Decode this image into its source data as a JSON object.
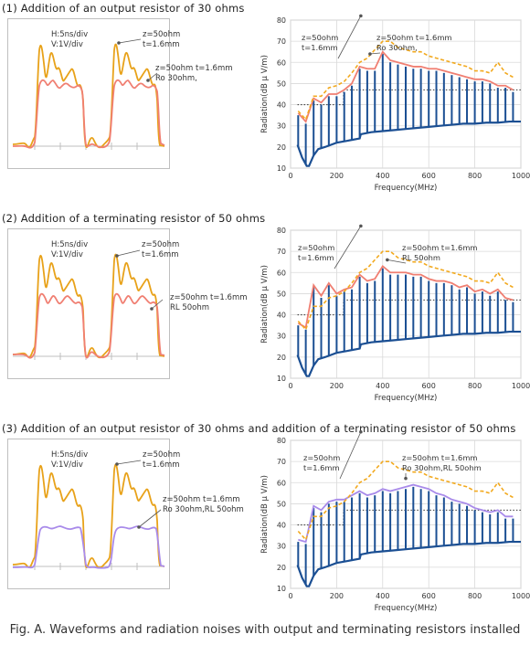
{
  "figure": {
    "caption": "Fig. A. Waveforms and radiation noises with output and terminating resistors installed"
  },
  "colors": {
    "axis_gray": "#bfbfbf",
    "original_waveform": "#e8a21a",
    "ro_waveform": "#f07f72",
    "rl_waveform": "#f07f72",
    "both_waveform": "#a98bea",
    "spectrum": "#1b4f93",
    "orig_envelope": "#f2a91e",
    "limit_line": "#333333"
  },
  "sections": [
    {
      "title": "(1) Addition of an output resistor of 30 ohms",
      "waveform": {
        "scale_h": "H:5ns/div",
        "scale_v": "V:1V/div",
        "label_orig_line1": "z=50ohm",
        "label_orig_line2": "t=1.6mm",
        "label_mod_line1": "z=50ohm  t=1.6mm",
        "label_mod_line2": "Ro 30ohm,"
      },
      "chart_data": {
        "type": "line",
        "ylabel": "Radiation(dB μ V/m)",
        "xlabel": "Frequency(MHz)",
        "xlim": [
          0,
          1000
        ],
        "ylim": [
          10,
          80
        ],
        "x_ticks": [
          0,
          200,
          400,
          600,
          800,
          1000
        ],
        "y_ticks": [
          10,
          20,
          30,
          40,
          50,
          60,
          70,
          80
        ],
        "grid": true,
        "label_orig_line1": "z=50ohm",
        "label_orig_line2": "t=1.6mm",
        "label_mod_line1": "z=50ohm  t=1.6mm",
        "label_mod_line2": "Ro 30ohm,",
        "series": [
          {
            "kind": "orig_envelope",
            "x": [
              33,
              66,
              100,
              133,
              166,
              200,
              233,
              266,
              300,
              333,
              366,
              400,
              433,
              466,
              500,
              533,
              566,
              600,
              633,
              666,
              700,
              733,
              766,
              800,
              833,
              866,
              900,
              933,
              966
            ],
            "values": [
              37,
              33,
              44,
              44,
              48,
              49,
              51,
              55,
              60,
              62,
              66,
              70,
              70,
              67,
              66,
              65,
              65,
              63,
              62,
              61,
              60,
              59,
              58,
              56,
              56,
              55,
              60,
              55,
              53
            ]
          },
          {
            "kind": "modified_envelope",
            "x": [
              33,
              66,
              100,
              133,
              166,
              200,
              233,
              266,
              300,
              333,
              366,
              400,
              433,
              466,
              500,
              533,
              566,
              600,
              633,
              666,
              700,
              733,
              766,
              800,
              833,
              866,
              900,
              933,
              966
            ],
            "values": [
              36,
              32,
              43,
              41,
              45,
              45,
              47,
              50,
              58,
              57,
              57,
              65,
              61,
              60,
              59,
              58,
              58,
              57,
              57,
              56,
              55,
              54,
              53,
              52,
              52,
              51,
              49,
              49,
              47
            ]
          },
          {
            "kind": "spikes",
            "x": [
              33,
              66,
              100,
              133,
              166,
              200,
              233,
              266,
              300,
              333,
              366,
              400,
              433,
              466,
              500,
              533,
              566,
              600,
              633,
              666,
              700,
              733,
              766,
              800,
              833,
              866,
              900,
              933,
              966
            ],
            "values": [
              35,
              31,
              42,
              40,
              44,
              44,
              46,
              49,
              57,
              56,
              56,
              64,
              60,
              59,
              58,
              57,
              57,
              56,
              56,
              55,
              54,
              53,
              52,
              51,
              51,
              50,
              48,
              48,
              46
            ]
          },
          {
            "kind": "noise_floor",
            "x": [
              30,
              50,
              70,
              80,
              100,
              120,
              150,
              200,
              250,
              300,
              305,
              350,
              400,
              450,
              500,
              550,
              600,
              650,
              700,
              750,
              800,
              850,
              900,
              950,
              1000
            ],
            "values": [
              21,
              15,
              11,
              11,
              16,
              19,
              20,
              22,
              23,
              24,
              26,
              27,
              27.5,
              28,
              28.5,
              29,
              29.5,
              30,
              30.5,
              31,
              31,
              31.5,
              31.5,
              32,
              32
            ]
          },
          {
            "kind": "limit_segments",
            "x": [
              30,
              230,
              230,
              1000
            ],
            "values": [
              40,
              40,
              47,
              47
            ]
          }
        ]
      }
    },
    {
      "title": "(2) Addition of a terminating resistor of 50 ohms",
      "waveform": {
        "scale_h": "H:5ns/div",
        "scale_v": "V:1V/div",
        "label_orig_line1": "z=50ohm",
        "label_orig_line2": "t=1.6mm",
        "label_mod_line1": "z=50ohm  t=1.6mm",
        "label_mod_line2": "RL 50ohm"
      },
      "chart_data": {
        "type": "line",
        "ylabel": "Radiation(dB μ V/m)",
        "xlabel": "Frequency(MHz)",
        "xlim": [
          0,
          1000
        ],
        "ylim": [
          10,
          80
        ],
        "x_ticks": [
          0,
          200,
          400,
          600,
          800,
          1000
        ],
        "y_ticks": [
          10,
          20,
          30,
          40,
          50,
          60,
          70,
          80
        ],
        "grid": true,
        "label_orig_line1": "z=50ohm",
        "label_orig_line2": "t=1.6mm",
        "label_mod_line1": "z=50ohm  t=1.6mm",
        "label_mod_line2": "RL 50ohm",
        "series": [
          {
            "kind": "orig_envelope",
            "x": [
              33,
              66,
              100,
              133,
              166,
              200,
              233,
              266,
              300,
              333,
              366,
              400,
              433,
              466,
              500,
              533,
              566,
              600,
              633,
              666,
              700,
              733,
              766,
              800,
              833,
              866,
              900,
              933,
              966
            ],
            "values": [
              37,
              33,
              44,
              44,
              48,
              49,
              51,
              55,
              60,
              62,
              66,
              70,
              70,
              67,
              66,
              65,
              65,
              63,
              62,
              61,
              60,
              59,
              58,
              56,
              56,
              55,
              60,
              55,
              53
            ]
          },
          {
            "kind": "modified_envelope",
            "x": [
              33,
              66,
              100,
              133,
              166,
              200,
              233,
              266,
              300,
              333,
              366,
              400,
              433,
              466,
              500,
              533,
              566,
              600,
              633,
              666,
              700,
              733,
              766,
              800,
              833,
              866,
              900,
              933,
              966
            ],
            "values": [
              36,
              34,
              54,
              49,
              55,
              50,
              52,
              53,
              59,
              56,
              57,
              63,
              60,
              60,
              60,
              59,
              59,
              57,
              56,
              56,
              55,
              53,
              54,
              51,
              52,
              50,
              52,
              48,
              47
            ]
          },
          {
            "kind": "spikes",
            "x": [
              33,
              66,
              100,
              133,
              166,
              200,
              233,
              266,
              300,
              333,
              366,
              400,
              433,
              466,
              500,
              533,
              566,
              600,
              633,
              666,
              700,
              733,
              766,
              800,
              833,
              866,
              900,
              933,
              966
            ],
            "values": [
              35,
              33,
              53,
              48,
              54,
              49,
              51,
              52,
              58,
              55,
              56,
              62,
              59,
              59,
              59,
              58,
              58,
              56,
              55,
              55,
              54,
              52,
              53,
              50,
              51,
              49,
              51,
              47,
              46
            ]
          },
          {
            "kind": "noise_floor",
            "x": [
              30,
              50,
              70,
              80,
              100,
              120,
              150,
              200,
              250,
              300,
              305,
              350,
              400,
              450,
              500,
              550,
              600,
              650,
              700,
              750,
              800,
              850,
              900,
              950,
              1000
            ],
            "values": [
              21,
              15,
              11,
              11,
              16,
              19,
              20,
              22,
              23,
              24,
              26,
              27,
              27.5,
              28,
              28.5,
              29,
              29.5,
              30,
              30.5,
              31,
              31,
              31.5,
              31.5,
              32,
              32
            ]
          },
          {
            "kind": "limit_segments",
            "x": [
              30,
              230,
              230,
              1000
            ],
            "values": [
              40,
              40,
              47,
              47
            ]
          }
        ]
      }
    },
    {
      "title": "(3) Addition of an output resistor of 30 ohms and addition of a terminating resistor of 50 ohms",
      "waveform": {
        "scale_h": "H:5ns/div",
        "scale_v": "V:1V/div",
        "label_orig_line1": "z=50ohm",
        "label_orig_line2": "t=1.6mm",
        "label_mod_line1": "z=50ohm  t=1.6mm",
        "label_mod_line2": "Ro 30ohm,RL 50ohm"
      },
      "chart_data": {
        "type": "line",
        "ylabel": "Radiation(dB μ V/m)",
        "xlabel": "Frequency(MHz)",
        "xlim": [
          0,
          1000
        ],
        "ylim": [
          10,
          80
        ],
        "x_ticks": [
          0,
          200,
          400,
          600,
          800,
          1000
        ],
        "y_ticks": [
          10,
          20,
          30,
          40,
          50,
          60,
          70,
          80
        ],
        "grid": true,
        "label_orig_line1": "z=50ohm",
        "label_orig_line2": "t=1.6mm",
        "label_mod_line1": "z=50ohm  t=1.6mm",
        "label_mod_line2": "Ro 30ohm,RL 50ohm",
        "series": [
          {
            "kind": "orig_envelope",
            "x": [
              33,
              66,
              100,
              133,
              166,
              200,
              233,
              266,
              300,
              333,
              366,
              400,
              433,
              466,
              500,
              533,
              566,
              600,
              633,
              666,
              700,
              733,
              766,
              800,
              833,
              866,
              900,
              933,
              966
            ],
            "values": [
              37,
              33,
              44,
              44,
              48,
              49,
              51,
              55,
              60,
              62,
              66,
              70,
              70,
              67,
              66,
              65,
              65,
              63,
              62,
              61,
              60,
              59,
              58,
              56,
              56,
              55,
              60,
              55,
              53
            ]
          },
          {
            "kind": "modified_envelope",
            "x": [
              33,
              66,
              100,
              133,
              166,
              200,
              233,
              266,
              300,
              333,
              366,
              400,
              433,
              466,
              500,
              533,
              566,
              600,
              633,
              666,
              700,
              733,
              766,
              800,
              833,
              866,
              900,
              933,
              966
            ],
            "values": [
              33,
              32,
              49,
              47,
              51,
              52,
              52,
              54,
              56,
              54,
              55,
              57,
              56,
              57,
              58,
              59,
              58,
              57,
              55,
              54,
              52,
              51,
              50,
              48,
              47,
              46,
              47,
              44,
              44
            ]
          },
          {
            "kind": "spikes",
            "x": [
              33,
              66,
              100,
              133,
              166,
              200,
              233,
              266,
              300,
              333,
              366,
              400,
              433,
              466,
              500,
              533,
              566,
              600,
              633,
              666,
              700,
              733,
              766,
              800,
              833,
              866,
              900,
              933,
              966
            ],
            "values": [
              32,
              31,
              48,
              46,
              50,
              51,
              51,
              53,
              55,
              53,
              54,
              56,
              55,
              56,
              57,
              58,
              57,
              56,
              54,
              53,
              51,
              50,
              49,
              47,
              46,
              45,
              46,
              43,
              43
            ]
          },
          {
            "kind": "noise_floor",
            "x": [
              30,
              50,
              70,
              80,
              100,
              120,
              150,
              200,
              250,
              300,
              305,
              350,
              400,
              450,
              500,
              550,
              600,
              650,
              700,
              750,
              800,
              850,
              900,
              950,
              1000
            ],
            "values": [
              21,
              15,
              11,
              11,
              16,
              19,
              20,
              22,
              23,
              24,
              26,
              27,
              27.5,
              28,
              28.5,
              29,
              29.5,
              30,
              30.5,
              31,
              31,
              31.5,
              31.5,
              32,
              32
            ]
          },
          {
            "kind": "limit_segments",
            "x": [
              30,
              230,
              230,
              1000
            ],
            "values": [
              40,
              40,
              47,
              47
            ]
          }
        ]
      }
    }
  ]
}
